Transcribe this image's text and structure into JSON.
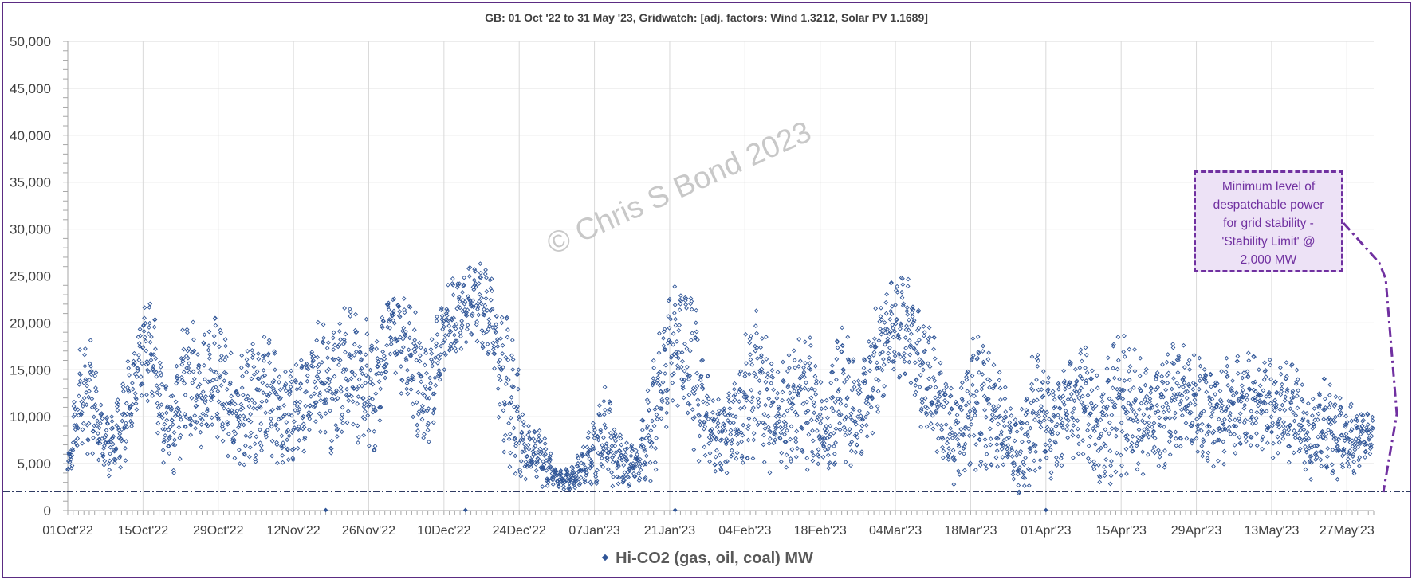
{
  "chart_data": {
    "type": "scatter",
    "title": "GB: 01 Oct '22 to 31 May '23, Gridwatch: [adj. factors: Wind 1.3212, Solar PV 1.1689]",
    "xlabel": "",
    "ylabel": "",
    "x_range": [
      "2022-10-01",
      "2023-06-01"
    ],
    "ylim": [
      0,
      50000
    ],
    "y_ticks": [
      "0",
      "5,000",
      "10,000",
      "15,000",
      "20,000",
      "25,000",
      "30,000",
      "35,000",
      "40,000",
      "45,000",
      "50,000"
    ],
    "x_ticks": [
      "01Oct'22",
      "15Oct'22",
      "29Oct'22",
      "12Nov'22",
      "26Nov'22",
      "10Dec'22",
      "24Dec'22",
      "07Jan'23",
      "21Jan'23",
      "04Feb'23",
      "18Feb'23",
      "04Mar'23",
      "18Mar'23",
      "01Apr'23",
      "15Apr'23",
      "29Apr'23",
      "13May'23",
      "27May'23"
    ],
    "grid": true,
    "legend_position": "bottom",
    "series": [
      {
        "name": "Hi-CO2 (gas, oil, coal) MW",
        "color": "#2f5597",
        "marker": "diamond",
        "envelope_points": [
          [
            "2022-10-01",
            3000,
            5000
          ],
          [
            "2022-10-03",
            5000,
            17000
          ],
          [
            "2022-10-05",
            6000,
            20500
          ],
          [
            "2022-10-07",
            4000,
            12000
          ],
          [
            "2022-10-09",
            3500,
            10000
          ],
          [
            "2022-10-12",
            5000,
            16000
          ],
          [
            "2022-10-15",
            12000,
            22000
          ],
          [
            "2022-10-17",
            10000,
            23000
          ],
          [
            "2022-10-19",
            4000,
            14000
          ],
          [
            "2022-10-21",
            3000,
            15000
          ],
          [
            "2022-10-23",
            8000,
            22000
          ],
          [
            "2022-10-26",
            6000,
            19000
          ],
          [
            "2022-10-29",
            7000,
            21500
          ],
          [
            "2022-11-01",
            4000,
            16000
          ],
          [
            "2022-11-04",
            4000,
            18500
          ],
          [
            "2022-11-07",
            4500,
            20000
          ],
          [
            "2022-11-10",
            4000,
            15000
          ],
          [
            "2022-11-13",
            5000,
            16000
          ],
          [
            "2022-11-16",
            8000,
            21000
          ],
          [
            "2022-11-19",
            6000,
            21000
          ],
          [
            "2022-11-22",
            8000,
            22000
          ],
          [
            "2022-11-25",
            6000,
            22500
          ],
          [
            "2022-11-27",
            4500,
            18000
          ],
          [
            "2022-11-30",
            16000,
            24500
          ],
          [
            "2022-12-03",
            10000,
            24000
          ],
          [
            "2022-12-05",
            7000,
            22000
          ],
          [
            "2022-12-07",
            5000,
            18000
          ],
          [
            "2022-12-10",
            14000,
            24000
          ],
          [
            "2022-12-13",
            17000,
            26000
          ],
          [
            "2022-12-16",
            18000,
            27000
          ],
          [
            "2022-12-19",
            16000,
            26000
          ],
          [
            "2022-12-21",
            5000,
            21000
          ],
          [
            "2022-12-23",
            3000,
            20500
          ],
          [
            "2022-12-25",
            2500,
            10000
          ],
          [
            "2022-12-28",
            2500,
            9000
          ],
          [
            "2022-12-31",
            2200,
            4500
          ],
          [
            "2023-01-03",
            2000,
            5000
          ],
          [
            "2023-01-06",
            2500,
            9000
          ],
          [
            "2023-01-09",
            2200,
            13500
          ],
          [
            "2023-01-12",
            2500,
            8000
          ],
          [
            "2023-01-15",
            2500,
            7000
          ],
          [
            "2023-01-18",
            3000,
            17000
          ],
          [
            "2023-01-20",
            8000,
            24000
          ],
          [
            "2023-01-23",
            10000,
            25500
          ],
          [
            "2023-01-26",
            5000,
            23000
          ],
          [
            "2023-01-29",
            4000,
            12000
          ],
          [
            "2023-02-01",
            3500,
            13000
          ],
          [
            "2023-02-04",
            4000,
            20000
          ],
          [
            "2023-02-07",
            5000,
            22500
          ],
          [
            "2023-02-10",
            3000,
            15000
          ],
          [
            "2023-02-13",
            5000,
            18000
          ],
          [
            "2023-02-16",
            4000,
            19500
          ],
          [
            "2023-02-19",
            3500,
            12000
          ],
          [
            "2023-02-22",
            4000,
            22000
          ],
          [
            "2023-02-25",
            5000,
            14000
          ],
          [
            "2023-02-28",
            8000,
            22000
          ],
          [
            "2023-03-03",
            12000,
            25000
          ],
          [
            "2023-03-06",
            14000,
            26500
          ],
          [
            "2023-03-09",
            8000,
            21000
          ],
          [
            "2023-03-12",
            4000,
            19000
          ],
          [
            "2023-03-15",
            2500,
            12000
          ],
          [
            "2023-03-18",
            3500,
            20000
          ],
          [
            "2023-03-21",
            4000,
            17500
          ],
          [
            "2023-03-24",
            3000,
            14000
          ],
          [
            "2023-03-27",
            1500,
            10000
          ],
          [
            "2023-03-30",
            2500,
            19000
          ],
          [
            "2023-04-02",
            3000,
            15000
          ],
          [
            "2023-04-05",
            5000,
            17000
          ],
          [
            "2023-04-08",
            5000,
            19500
          ],
          [
            "2023-04-11",
            2500,
            14000
          ],
          [
            "2023-04-14",
            2000,
            20000
          ],
          [
            "2023-04-17",
            4000,
            18000
          ],
          [
            "2023-04-20",
            3500,
            16000
          ],
          [
            "2023-04-23",
            4000,
            17500
          ],
          [
            "2023-04-26",
            6000,
            19000
          ],
          [
            "2023-04-29",
            5000,
            17000
          ],
          [
            "2023-05-02",
            4000,
            16000
          ],
          [
            "2023-05-05",
            5000,
            16500
          ],
          [
            "2023-05-08",
            6000,
            17000
          ],
          [
            "2023-05-11",
            6000,
            17000
          ],
          [
            "2023-05-14",
            5000,
            16000
          ],
          [
            "2023-05-17",
            5000,
            16500
          ],
          [
            "2023-05-20",
            3000,
            12000
          ],
          [
            "2023-05-23",
            4000,
            14500
          ],
          [
            "2023-05-26",
            2500,
            13000
          ],
          [
            "2023-05-29",
            4000,
            11500
          ],
          [
            "2023-05-31",
            6000,
            11000
          ]
        ],
        "outliers": [
          [
            "2022-11-18",
            50
          ],
          [
            "2022-12-14",
            50
          ],
          [
            "2023-01-22",
            50
          ],
          [
            "2023-04-01",
            50
          ]
        ]
      }
    ],
    "reference_line": {
      "value": 2000,
      "style": "dash-dot"
    }
  },
  "legend": {
    "label": "Hi-CO2 (gas, oil, coal) MW"
  },
  "annotation": {
    "lines": [
      "Minimum level of",
      "despatchable power",
      "for grid stability -",
      "'Stability Limit' @",
      "2,000 MW"
    ]
  },
  "watermark": "© Chris S Bond  2023",
  "colors": {
    "series": "#2f5597",
    "annotation": "#7030a0",
    "frame": "#5b2c83"
  }
}
